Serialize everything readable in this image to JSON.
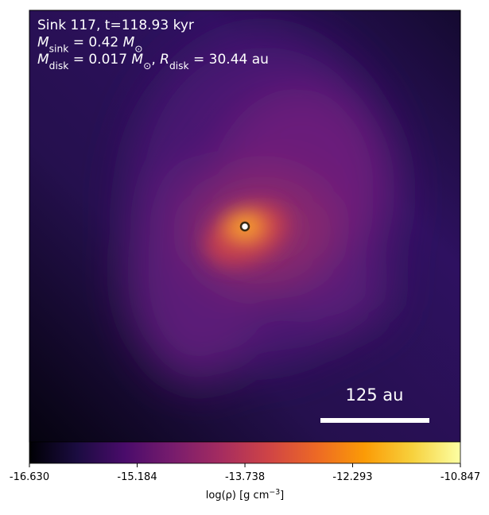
{
  "chart_data": {
    "type": "density-map",
    "annotations": [
      [
        {
          "text": "Sink 117, t=118.93 kyr"
        }
      ],
      [
        {
          "text": "M",
          "italic": true
        },
        {
          "text": "sink",
          "sub": true
        },
        {
          "text": " = 0.42 "
        },
        {
          "text": "M",
          "italic": true
        },
        {
          "text": "⊙",
          "sub": true
        }
      ],
      [
        {
          "text": "M",
          "italic": true
        },
        {
          "text": "disk",
          "sub": true
        },
        {
          "text": " = 0.017 "
        },
        {
          "text": "M",
          "italic": true
        },
        {
          "text": "⊙",
          "sub": true
        },
        {
          "text": ", "
        },
        {
          "text": "R",
          "italic": true
        },
        {
          "text": "disk",
          "sub": true
        },
        {
          "text": " = 30.44 au"
        }
      ]
    ],
    "scale_bar": "125 au",
    "colorbar": {
      "label": [
        {
          "text": "log(ρ) [g cm"
        },
        {
          "text": "−3",
          "sup": true
        },
        {
          "text": "]"
        }
      ],
      "xlim": [
        -16.63,
        -10.847
      ],
      "xticks": [
        {
          "value": -16.63,
          "label": "-16.630"
        },
        -15.184,
        -13.738,
        -12.293,
        {
          "value": -10.847,
          "label": "-10.847"
        }
      ],
      "colormap": [
        "#000004",
        "#1b0c41",
        "#4a0c6b",
        "#781c6d",
        "#a52c60",
        "#cf4446",
        "#ed6925",
        "#fb9b06",
        "#f7d13d",
        "#fcffa4"
      ]
    }
  }
}
